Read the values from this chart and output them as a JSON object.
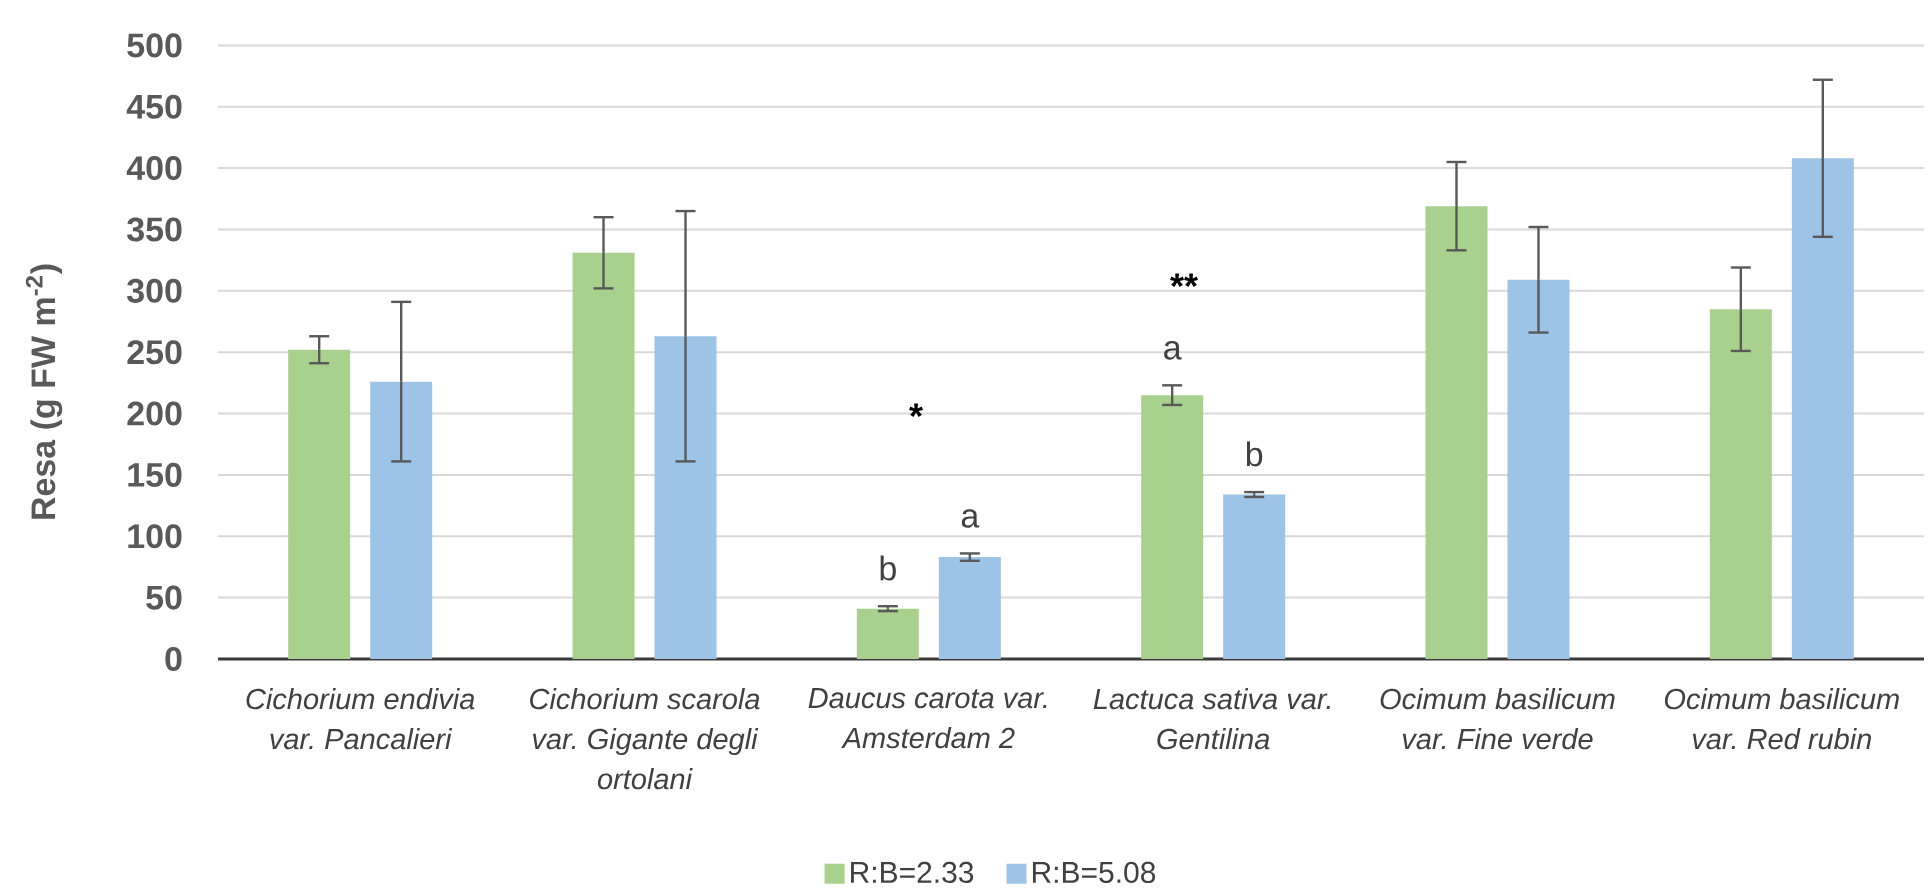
{
  "chart_data": {
    "type": "bar",
    "ylabel": "Resa (g FW m$^{-2}$)",
    "categories": [
      "Cichorium endivia var. Pancalieri",
      "Cichorium scarola var. Gigante degli ortolani",
      "Daucus carota var. Amsterdam 2",
      "Lactuca sativa var. Gentilina",
      "Ocimum basilicum var. Fine verde",
      "Ocimum basilicum var. Red rubin"
    ],
    "series": [
      {
        "name": "R:B=2.33",
        "color": "#a9d18e",
        "values": [
          252,
          331,
          41,
          215,
          369,
          285
        ],
        "errors": [
          11,
          29,
          2,
          8,
          36,
          34
        ],
        "value_labels": [
          null,
          null,
          "b",
          "a",
          null,
          null
        ]
      },
      {
        "name": "R:B=5.08",
        "color": "#9dc3e6",
        "values": [
          226,
          263,
          83,
          134,
          309,
          408
        ],
        "errors": [
          65,
          102,
          3,
          2,
          43,
          64
        ],
        "value_labels": [
          null,
          null,
          "a",
          "b",
          null,
          null
        ]
      }
    ],
    "ylim": [
      0,
      500
    ],
    "yticks": [
      0,
      50,
      100,
      150,
      200,
      250,
      300,
      350,
      400,
      450,
      500
    ],
    "grid": "y",
    "legend": "bottom",
    "annotations": [
      "*",
      "**"
    ]
  }
}
